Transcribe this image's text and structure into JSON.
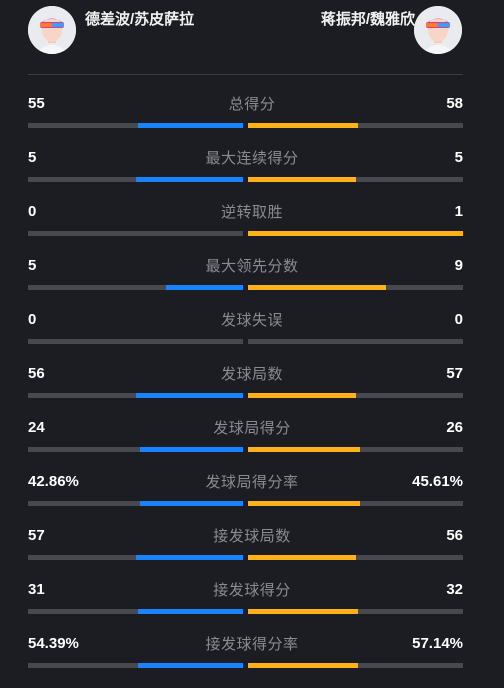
{
  "header": {
    "left_team": "德差波/苏皮萨拉",
    "right_team": "蒋振邦/魏雅欣",
    "left_avatar_icon": "player-avatar-icon",
    "right_avatar_icon": "player-avatar-icon"
  },
  "colors": {
    "left_bar": "#1a83ff",
    "right_bar": "#ffb11a",
    "track": "#48494f",
    "background": "#1c1d22"
  },
  "stats": [
    {
      "label": "总得分",
      "left": "55",
      "right": "58",
      "left_fill": 0.49,
      "right_fill": 0.51
    },
    {
      "label": "最大连续得分",
      "left": "5",
      "right": "5",
      "left_fill": 0.5,
      "right_fill": 0.5
    },
    {
      "label": "逆转取胜",
      "left": "0",
      "right": "1",
      "left_fill": 0.0,
      "right_fill": 1.0
    },
    {
      "label": "最大领先分数",
      "left": "5",
      "right": "9",
      "left_fill": 0.36,
      "right_fill": 0.64
    },
    {
      "label": "发球失误",
      "left": "0",
      "right": "0",
      "left_fill": 0.0,
      "right_fill": 0.0
    },
    {
      "label": "发球局数",
      "left": "56",
      "right": "57",
      "left_fill": 0.5,
      "right_fill": 0.5
    },
    {
      "label": "发球局得分",
      "left": "24",
      "right": "26",
      "left_fill": 0.48,
      "right_fill": 0.52
    },
    {
      "label": "发球局得分率",
      "left": "42.86%",
      "right": "45.61%",
      "left_fill": 0.48,
      "right_fill": 0.52
    },
    {
      "label": "接发球局数",
      "left": "57",
      "right": "56",
      "left_fill": 0.5,
      "right_fill": 0.5
    },
    {
      "label": "接发球得分",
      "left": "31",
      "right": "32",
      "left_fill": 0.49,
      "right_fill": 0.51
    },
    {
      "label": "接发球得分率",
      "left": "54.39%",
      "right": "57.14%",
      "left_fill": 0.49,
      "right_fill": 0.51
    }
  ]
}
